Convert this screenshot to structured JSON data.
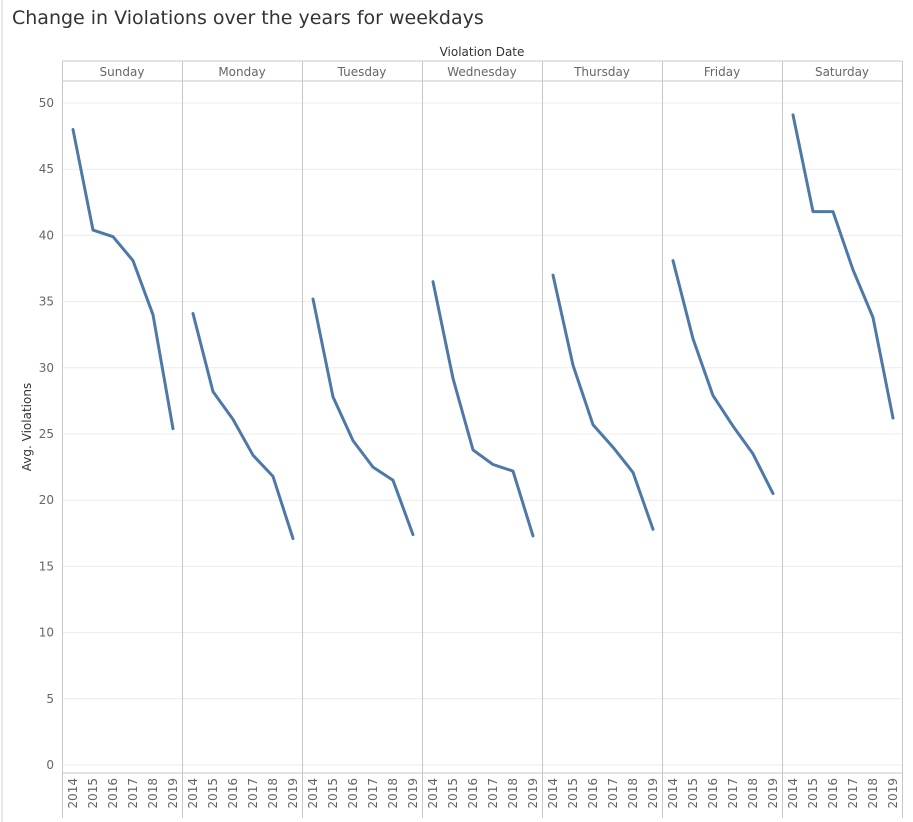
{
  "chart_data": {
    "type": "line",
    "title": "Change in Violations over the years for weekdays",
    "column_header": "Violation Date",
    "ylabel": "Avg. Violations",
    "ylim": [
      0,
      52
    ],
    "yticks": [
      0,
      5,
      10,
      15,
      20,
      25,
      30,
      35,
      40,
      45,
      50
    ],
    "years": [
      "2014",
      "2015",
      "2016",
      "2017",
      "2018",
      "2019"
    ],
    "grid": true,
    "line_color": "#4e79a7",
    "panels": [
      {
        "name": "Sunday",
        "values": [
          48.0,
          40.4,
          39.9,
          38.1,
          34.0,
          25.4
        ]
      },
      {
        "name": "Monday",
        "values": [
          34.1,
          28.2,
          26.1,
          23.4,
          21.8,
          17.1
        ]
      },
      {
        "name": "Tuesday",
        "values": [
          35.2,
          27.8,
          24.5,
          22.5,
          21.5,
          17.4
        ]
      },
      {
        "name": "Wednesday",
        "values": [
          36.5,
          29.2,
          23.8,
          22.7,
          22.2,
          17.3
        ]
      },
      {
        "name": "Thursday",
        "values": [
          37.0,
          30.2,
          25.7,
          24.0,
          22.1,
          17.8
        ]
      },
      {
        "name": "Friday",
        "values": [
          38.1,
          32.2,
          27.9,
          25.6,
          23.5,
          20.5
        ]
      },
      {
        "name": "Saturday",
        "values": [
          49.1,
          41.8,
          41.8,
          37.4,
          33.8,
          26.2
        ]
      }
    ]
  }
}
